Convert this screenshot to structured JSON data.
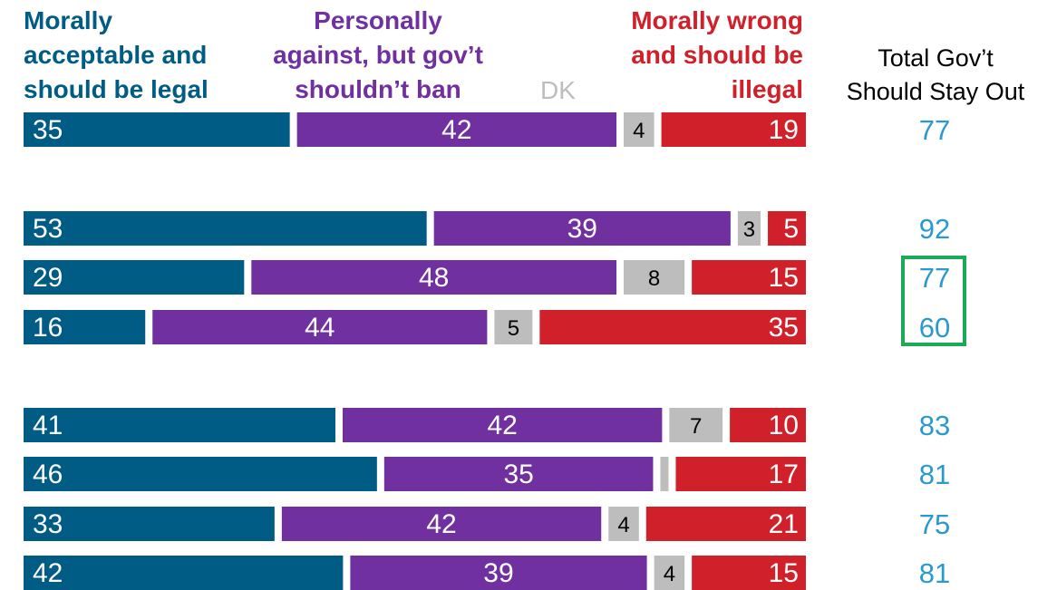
{
  "colors": {
    "accept": "#005b85",
    "against": "#7030a0",
    "dk": "#bdbdbd",
    "wrong": "#d0202a",
    "total": "#2a99cf",
    "highlight": "#1aab56"
  },
  "headers": {
    "accept": "Morally\nacceptable and\nshould be legal",
    "against": "Personally\nagainst, but gov’t\nshouldn’t ban",
    "dk": "DK",
    "wrong": "Morally wrong\nand should be\nillegal",
    "total": "Total Gov’t\nShould Stay Out"
  },
  "chart_data": {
    "type": "bar",
    "stacked": true,
    "orientation": "horizontal",
    "series_order": [
      "Morally acceptable and should be legal",
      "Personally against, but gov’t shouldn’t ban",
      "DK",
      "Morally wrong and should be illegal"
    ],
    "rows": [
      {
        "accept": 35,
        "against": 42,
        "dk": 4,
        "wrong": 19,
        "total": 77,
        "dk_label": "4"
      },
      {
        "accept": 53,
        "against": 39,
        "dk": 3,
        "wrong": 5,
        "total": 92,
        "dk_label": "3"
      },
      {
        "accept": 29,
        "against": 48,
        "dk": 8,
        "wrong": 15,
        "total": 77,
        "dk_label": "8",
        "highlight": true
      },
      {
        "accept": 16,
        "against": 44,
        "dk": 5,
        "wrong": 35,
        "total": 60,
        "dk_label": "5",
        "highlight": true
      },
      {
        "accept": 41,
        "against": 42,
        "dk": 7,
        "wrong": 10,
        "total": 83,
        "dk_label": "7"
      },
      {
        "accept": 46,
        "against": 35,
        "dk": 1,
        "wrong": 17,
        "total": 81,
        "dk_label": ""
      },
      {
        "accept": 33,
        "against": 42,
        "dk": 4,
        "wrong": 21,
        "total": 75,
        "dk_label": "4"
      },
      {
        "accept": 42,
        "against": 39,
        "dk": 4,
        "wrong": 15,
        "total": 81,
        "dk_label": "4"
      }
    ]
  }
}
